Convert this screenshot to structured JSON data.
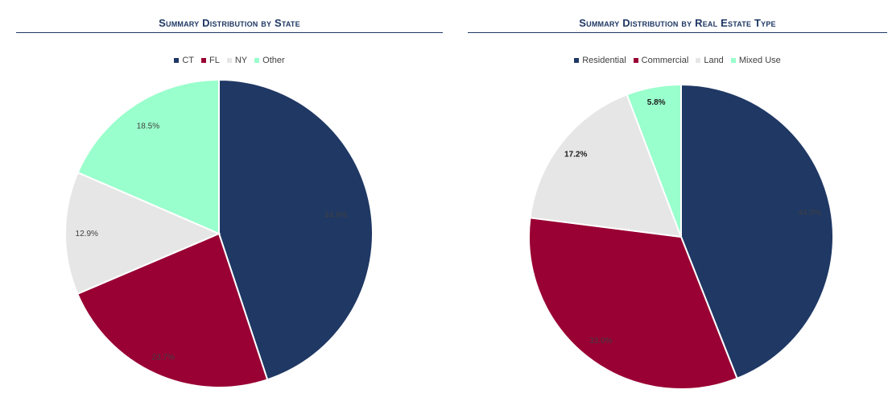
{
  "chart_data": [
    {
      "type": "pie",
      "title": "Summary Distribution by State",
      "legend_position": "top",
      "categories": [
        "CT",
        "FL",
        "NY",
        "Other"
      ],
      "values": [
        44.9,
        23.7,
        12.9,
        18.5
      ],
      "labels": [
        "44.9%",
        "23.7%",
        "12.9%",
        "18.5%"
      ],
      "colors": [
        "#1F3864",
        "#990033",
        "#E6E6E6",
        "#99FFCC"
      ]
    },
    {
      "type": "pie",
      "title": "Summary Distribution by Real Estate Type",
      "legend_position": "top",
      "categories": [
        "Residential",
        "Commercial",
        "Land",
        "Mixed Use"
      ],
      "values": [
        44.0,
        33.0,
        17.2,
        5.8
      ],
      "labels": [
        "44.0%",
        "33.0%",
        "17.2%",
        "5.8%"
      ],
      "colors": [
        "#1F3864",
        "#990033",
        "#E6E6E6",
        "#99FFCC"
      ]
    }
  ]
}
